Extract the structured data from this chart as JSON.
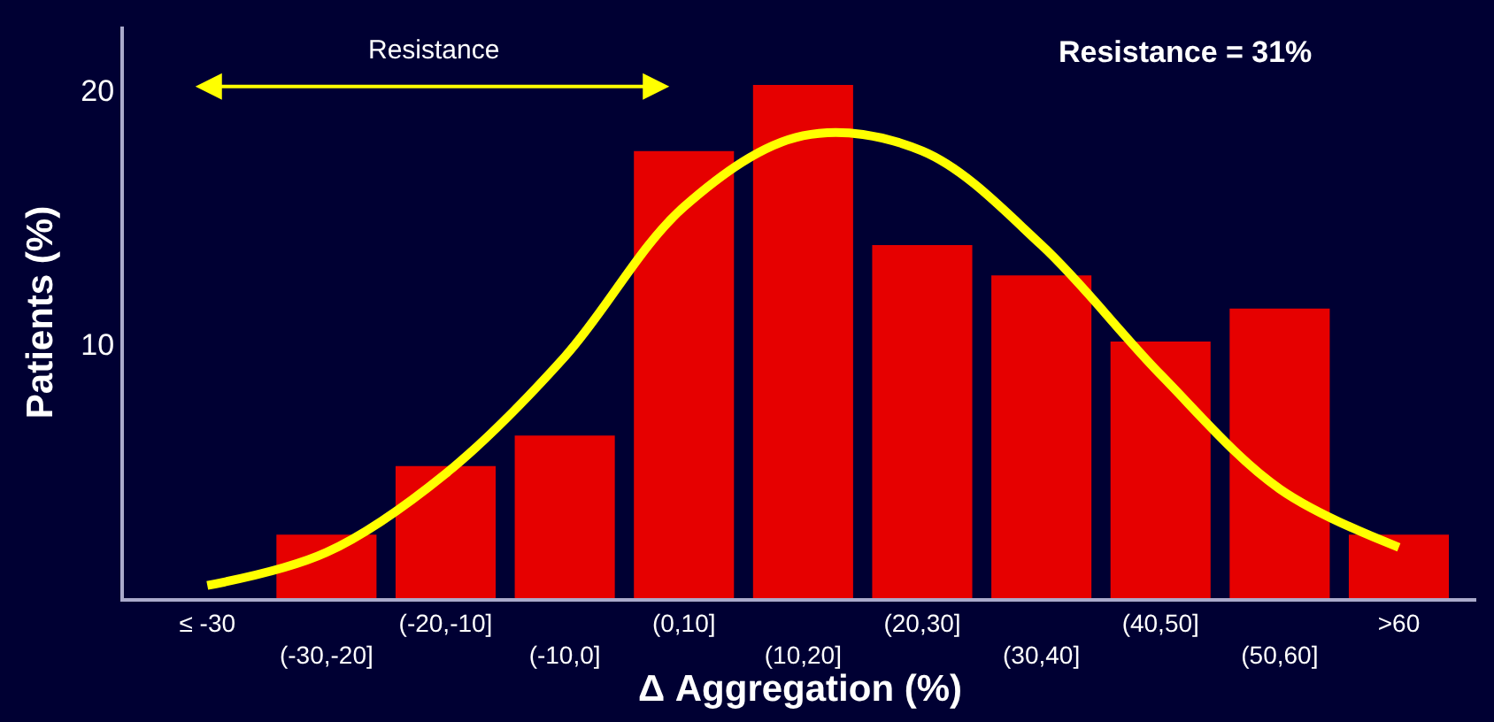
{
  "chart_data": {
    "type": "bar",
    "xlabel": "Δ Aggregation (%)",
    "ylabel": "Patients (%)",
    "categories": [
      "≤ -30",
      "(-30,-20]",
      "(-20,-10]",
      "(-10,0]",
      "(0,10]",
      "(10,20]",
      "(20,30]",
      "(30,40]",
      "(40,50]",
      "(50,60]",
      ">60"
    ],
    "series": [
      {
        "color": "#e60000",
        "values": [
          0,
          2.5,
          5.2,
          6.4,
          17.6,
          20.2,
          13.9,
          12.7,
          10.1,
          11.4,
          2.5
        ]
      },
      {
        "type": "line",
        "color": "#ffff00",
        "values": [
          0.5,
          1.8,
          4.9,
          9.5,
          15.4,
          18.2,
          17.6,
          13.9,
          8.8,
          4.3,
          2.0
        ]
      }
    ],
    "ylim": [
      0,
      22.5
    ],
    "yticks": [
      10,
      20
    ],
    "grid": false,
    "marker": "none",
    "line_style": "solid",
    "annotations": [
      "Resistance",
      "Resistance = 31%"
    ]
  }
}
